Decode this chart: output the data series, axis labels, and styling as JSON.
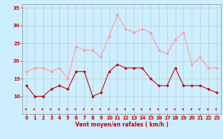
{
  "x": [
    0,
    1,
    2,
    3,
    4,
    5,
    6,
    7,
    8,
    9,
    10,
    11,
    12,
    13,
    14,
    15,
    16,
    17,
    18,
    19,
    20,
    21,
    22,
    23
  ],
  "wind_avg": [
    13,
    10,
    10,
    12,
    13,
    12,
    17,
    17,
    10,
    11,
    17,
    19,
    18,
    18,
    18,
    15,
    13,
    13,
    18,
    13,
    13,
    13,
    12,
    11
  ],
  "wind_gust": [
    17,
    18,
    18,
    17,
    18,
    15,
    24,
    23,
    23,
    21,
    27,
    33,
    29,
    28,
    29,
    28,
    23,
    22,
    26,
    28,
    19,
    21,
    18,
    18
  ],
  "xlabel": "Vent moyen/en rafales ( km/h )",
  "ylim": [
    5,
    36
  ],
  "yticks": [
    10,
    15,
    20,
    25,
    30,
    35
  ],
  "xticks": [
    0,
    1,
    2,
    3,
    4,
    5,
    6,
    7,
    8,
    9,
    10,
    11,
    12,
    13,
    14,
    15,
    16,
    17,
    18,
    19,
    20,
    21,
    22,
    23
  ],
  "bg_color": "#cceeff",
  "grid_color": "#bbcccc",
  "line_avg_color": "#cc0000",
  "line_gust_color": "#ff9999",
  "arrow_color": "#cc0000",
  "tick_color": "#cc0000",
  "label_color": "#cc0000"
}
